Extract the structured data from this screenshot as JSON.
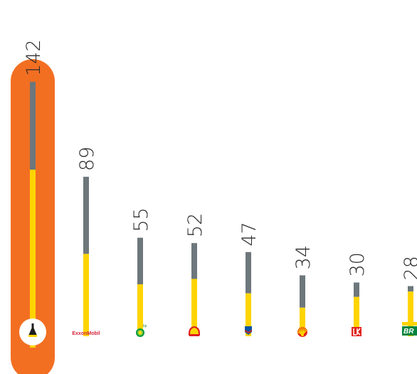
{
  "chart_data": {
    "type": "bar",
    "stacked": true,
    "categories": [
      "Rosneft",
      "ExxonMobil",
      "BP",
      "Shell",
      "Chevron",
      "CNPC",
      "Lukoil",
      "Petrobras"
    ],
    "totals": [
      "142",
      "89",
      "55",
      "52",
      "47",
      "34",
      "30",
      "28"
    ],
    "series": [
      {
        "values": [
          93,
          46,
          29,
          32,
          24,
          16,
          22,
          25
        ]
      },
      {
        "values": [
          49,
          43,
          26,
          20,
          23,
          18,
          8,
          3
        ]
      }
    ],
    "colors": {
      "lower": "#ffd400",
      "upper": "#6d777c",
      "highlight": "#f26f22"
    },
    "highlight_index": 0,
    "logo_text": {
      "exxonmobil": "ExxonMobil",
      "bp": "bp",
      "petrobras": "BR"
    }
  }
}
